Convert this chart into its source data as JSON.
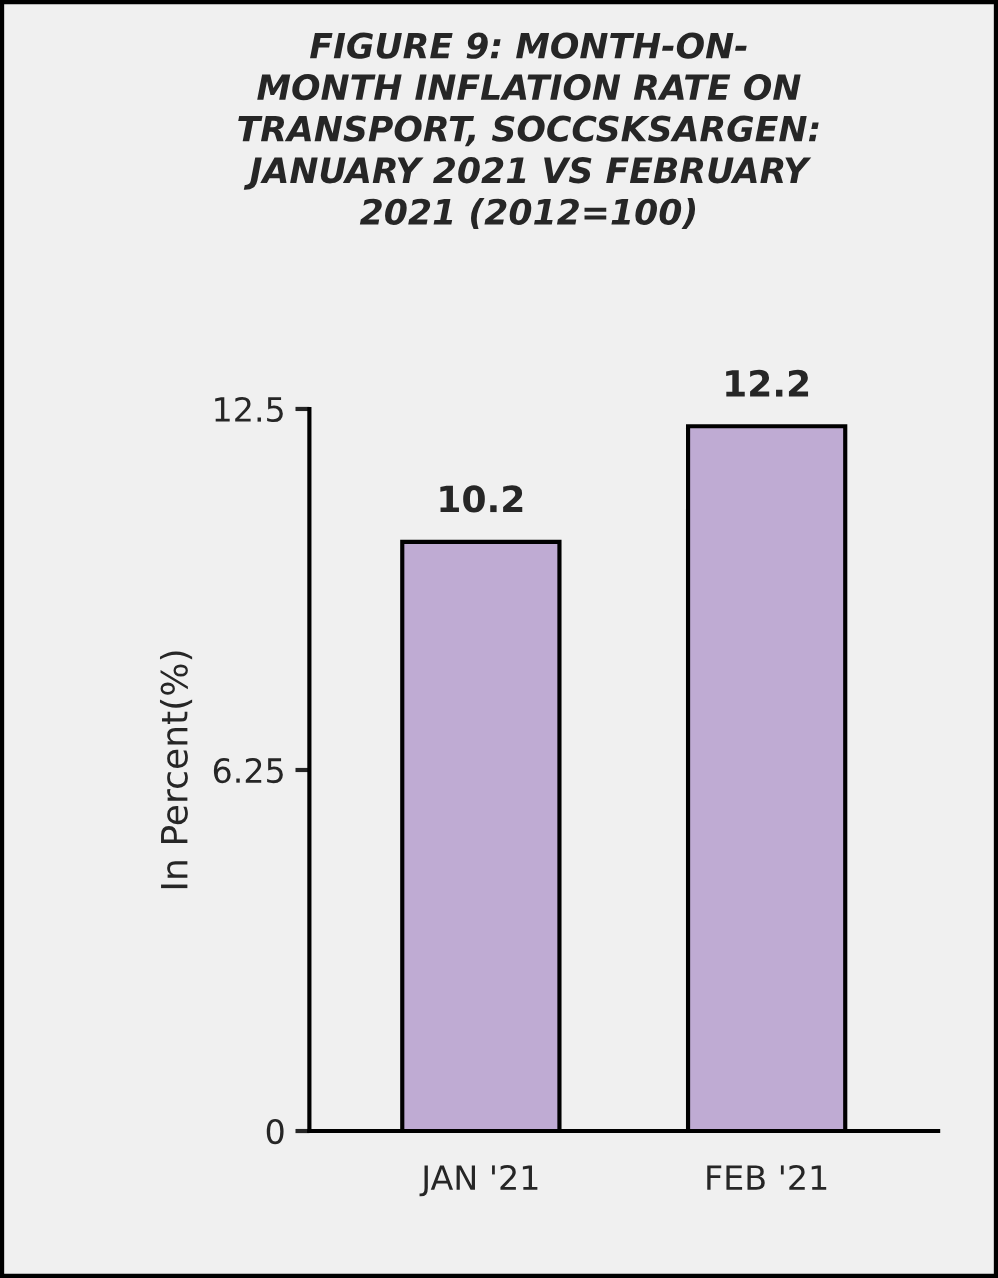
{
  "chart_data": {
    "type": "bar",
    "title": "FIGURE 9: MONTH-ON-\nMONTH INFLATION RATE ON\nTRANSPORT, SOCCSKSARGEN:\nJANUARY 2021 VS FEBRUARY\n2021 (2012=100)",
    "ylabel": "In Percent(%)",
    "categories": [
      "JAN '21",
      "FEB '21"
    ],
    "values": [
      10.2,
      12.2
    ],
    "color": "#bfabd3",
    "ylim": [
      0,
      12.5
    ],
    "yticks": [
      0,
      6.25,
      12.5
    ],
    "data_labels": true,
    "grid": false,
    "legend": false
  }
}
